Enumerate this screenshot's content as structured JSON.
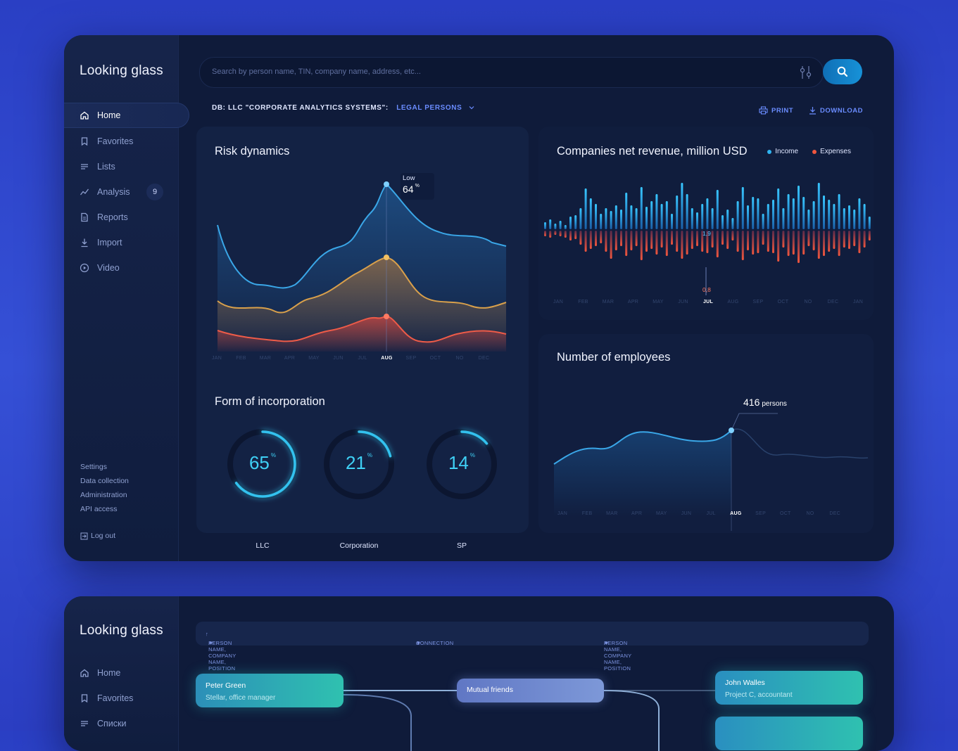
{
  "app": {
    "title": "Looking glass"
  },
  "nav": {
    "items": [
      {
        "label": "Home"
      },
      {
        "label": "Favorites"
      },
      {
        "label": "Lists"
      },
      {
        "label": "Analysis",
        "badge": "9"
      },
      {
        "label": "Reports"
      },
      {
        "label": "Import"
      },
      {
        "label": "Video"
      }
    ],
    "bottom": [
      "Settings",
      "Data collection",
      "Administration",
      "API access"
    ],
    "logout": "Log out"
  },
  "search": {
    "placeholder": "Search by person name, TIN, company name, address, etc..."
  },
  "db": {
    "prefix": "DB: LLC \"CORPORATE ANALYTICS SYSTEMS\":",
    "type": "LEGAL PERSONS"
  },
  "actions": {
    "print": "PRINT",
    "download": "DOWNLOAD"
  },
  "risk": {
    "title": "Risk dynamics",
    "tooltip_label": "Low",
    "tooltip_value": "64",
    "tooltip_unit": "%",
    "months": [
      "JAN",
      "FEB",
      "MAR",
      "APR",
      "MAY",
      "JUN",
      "JUL",
      "AUG",
      "SEP",
      "OCT",
      "NO",
      "DEC"
    ],
    "active_month": "AUG"
  },
  "revenue": {
    "title": "Companies net revenue, million USD",
    "legend_income": "Income",
    "legend_expenses": "Expenses",
    "income_label": "1,9",
    "expense_label": "0,8",
    "months": [
      "JAN",
      "FEB",
      "MAR",
      "APR",
      "MAY",
      "JUN",
      "JUL",
      "AUG",
      "SEP",
      "OCT",
      "NO",
      "DEC",
      "JAN"
    ],
    "active_month": "JUL",
    "colors": {
      "income": "#2fb3f0",
      "expenses": "#f0563e"
    }
  },
  "incorporation": {
    "title": "Form of incorporation",
    "items": [
      {
        "value": "65",
        "unit": "%",
        "label": "LLC"
      },
      {
        "value": "21",
        "unit": "%",
        "label": "Corporation"
      },
      {
        "value": "14",
        "unit": "%",
        "label": "SP"
      }
    ]
  },
  "employees": {
    "title": "Number of employees",
    "value": "416",
    "unit": "persons",
    "months": [
      "JAN",
      "FEB",
      "MAR",
      "APR",
      "MAY",
      "JUN",
      "JUL",
      "AUG",
      "SEP",
      "OCT",
      "NO",
      "DEC"
    ],
    "active_month": "AUG"
  },
  "second": {
    "title": "Looking glass",
    "nav": [
      "Home",
      "Favorites",
      "Списки"
    ],
    "columns": [
      "PERSON NAME, COMPANY NAME, POSITION",
      "CONNECTION",
      "PERSON NAME, COMPANY NAME, POSITION"
    ],
    "left_node": {
      "name": "Peter Green",
      "role": "Stellar, office manager"
    },
    "mid_node": {
      "name": "Mutual friends"
    },
    "right_node": {
      "name": "John Walles",
      "role": "Project C, accountant"
    }
  }
}
